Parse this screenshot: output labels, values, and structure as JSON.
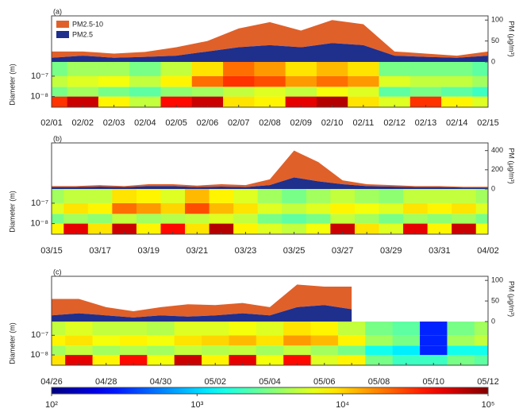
{
  "chart_data": [
    {
      "type": "spectrum",
      "label": "(a)",
      "ylabel": "Diameter (m)",
      "y2label": "PM (μg/m³)",
      "categories": [
        "02/01",
        "02/02",
        "02/03",
        "02/04",
        "02/05",
        "02/06",
        "02/07",
        "02/08",
        "02/09",
        "02/10",
        "02/11",
        "02/12",
        "02/13",
        "02/14",
        "02/15"
      ],
      "series": [
        {
          "name": "PM2.5",
          "color": "#1f2f8c",
          "values": [
            10,
            15,
            10,
            12,
            15,
            25,
            35,
            40,
            35,
            45,
            40,
            15,
            12,
            10,
            15
          ]
        },
        {
          "name": "PM2.5-10",
          "color": "#e0602a",
          "values": [
            15,
            10,
            10,
            12,
            20,
            25,
            45,
            55,
            40,
            55,
            50,
            10,
            8,
            5,
            10
          ]
        }
      ],
      "legend": "upper left",
      "y2lim": [
        0,
        110
      ],
      "y2ticks": [
        0,
        50,
        100
      ],
      "ylim": [
        3e-09,
        5e-07
      ],
      "log": true,
      "yticks": [
        {
          "value": 1e-07,
          "label": "10⁻⁷"
        },
        {
          "value": 1e-08,
          "label": "10⁻⁸"
        }
      ],
      "diameter_bins": [
        3e-09,
        1e-08,
        3e-08,
        1e-07,
        5e-07
      ],
      "heatmap": [
        [
          30000,
          60000,
          8000,
          5000,
          40000,
          60000,
          9000,
          8000,
          50000,
          70000,
          9000,
          6000,
          30000,
          8000,
          6000
        ],
        [
          3000,
          4000,
          3000,
          2500,
          3500,
          4000,
          5000,
          6000,
          5000,
          7000,
          6000,
          2500,
          3000,
          2500,
          2000
        ],
        [
          5000,
          6000,
          7000,
          5000,
          8000,
          20000,
          30000,
          25000,
          15000,
          20000,
          15000,
          6000,
          5000,
          5000,
          4000
        ],
        [
          3000,
          4000,
          4000,
          3000,
          5000,
          9000,
          20000,
          15000,
          9000,
          12000,
          9000,
          3000,
          3000,
          3000,
          2500
        ]
      ]
    },
    {
      "type": "spectrum",
      "label": "(b)",
      "ylabel": "Diameter (m)",
      "y2label": "PM (μg/m³)",
      "categories": [
        "03/15",
        null,
        "03/17",
        null,
        "03/19",
        null,
        "03/21",
        null,
        "03/23",
        null,
        "03/25",
        null,
        "03/27",
        null,
        "03/29",
        null,
        "03/31",
        null,
        "04/02"
      ],
      "series": [
        {
          "name": "PM2.5",
          "color": "#1f2f8c",
          "values": [
            20,
            20,
            25,
            20,
            30,
            30,
            20,
            25,
            20,
            40,
            120,
            80,
            50,
            30,
            25,
            20,
            20,
            15,
            15
          ]
        },
        {
          "name": "PM2.5-10",
          "color": "#e0602a",
          "values": [
            10,
            10,
            15,
            10,
            20,
            20,
            15,
            25,
            20,
            60,
            280,
            200,
            40,
            20,
            15,
            10,
            10,
            8,
            8
          ]
        }
      ],
      "y2lim": [
        0,
        480
      ],
      "y2ticks": [
        0,
        200,
        400
      ],
      "ylim": [
        3e-09,
        5e-07
      ],
      "log": true,
      "yticks": [
        {
          "value": 1e-07,
          "label": "10⁻⁷"
        },
        {
          "value": 1e-08,
          "label": "10⁻⁸"
        }
      ],
      "diameter_bins": [
        3e-09,
        1e-08,
        3e-08,
        1e-07,
        5e-07
      ],
      "heatmap": [
        [
          8000,
          50000,
          9000,
          60000,
          8000,
          40000,
          9000,
          70000,
          8000,
          6000,
          5000,
          7000,
          60000,
          9000,
          6000,
          50000,
          8000,
          60000,
          7000
        ],
        [
          3000,
          4000,
          3500,
          5000,
          4000,
          4500,
          5000,
          6000,
          5000,
          3000,
          2500,
          3000,
          5000,
          4000,
          3000,
          4000,
          3500,
          4000,
          3000
        ],
        [
          6000,
          9000,
          8000,
          20000,
          15000,
          10000,
          25000,
          12000,
          9000,
          6000,
          5000,
          6000,
          8000,
          7000,
          6000,
          9000,
          8000,
          9000,
          6000
        ],
        [
          4000,
          5000,
          5000,
          9000,
          8000,
          6000,
          12000,
          8000,
          6000,
          4000,
          3000,
          4000,
          5000,
          4000,
          3500,
          5000,
          5000,
          5000,
          4000
        ]
      ]
    },
    {
      "type": "spectrum",
      "label": "(c)",
      "ylabel": "Diameter (m)",
      "y2label": "PM (μg/m³)",
      "categories": [
        "04/26",
        null,
        "04/28",
        null,
        "04/30",
        null,
        "05/02",
        null,
        "05/04",
        null,
        "05/06",
        null,
        "05/08",
        null,
        "05/10",
        null,
        "05/12"
      ],
      "series": [
        {
          "name": "PM2.5",
          "color": "#1f2f8c",
          "values": [
            15,
            20,
            15,
            10,
            15,
            12,
            15,
            20,
            15,
            35,
            40,
            30,
            null,
            null,
            null,
            null,
            10
          ]
        },
        {
          "name": "PM2.5-10",
          "color": "#e0602a",
          "values": [
            40,
            35,
            20,
            15,
            20,
            30,
            25,
            25,
            20,
            55,
            45,
            55,
            null,
            null,
            null,
            null,
            10
          ]
        }
      ],
      "y2lim": [
        0,
        110
      ],
      "y2ticks": [
        0,
        50,
        100
      ],
      "ylim": [
        3e-09,
        5e-07
      ],
      "log": true,
      "yticks": [
        {
          "value": 1e-07,
          "label": "10⁻⁷"
        },
        {
          "value": 1e-08,
          "label": "10⁻⁸"
        }
      ],
      "diameter_bins": [
        3e-09,
        1e-08,
        3e-08,
        1e-07,
        5e-07
      ],
      "heatmap": [
        [
          9000,
          50000,
          8000,
          40000,
          7000,
          60000,
          8000,
          50000,
          7000,
          40000,
          6000,
          8000,
          3000,
          2000,
          2000,
          3000,
          2500
        ],
        [
          4000,
          5000,
          4000,
          4500,
          4000,
          5000,
          4500,
          5000,
          4000,
          5000,
          4000,
          3000,
          1500,
          1200,
          300,
          1500,
          1500
        ],
        [
          8000,
          9000,
          7000,
          8000,
          7000,
          9000,
          10000,
          12000,
          9000,
          15000,
          12000,
          8000,
          4000,
          3000,
          300,
          4000,
          5000
        ],
        [
          5000,
          6000,
          5000,
          5000,
          4500,
          6000,
          6000,
          7000,
          6000,
          9000,
          8000,
          5000,
          3000,
          2500,
          300,
          3000,
          4000
        ]
      ]
    },
    {
      "type": "colorbar",
      "log": true,
      "clim": [
        100,
        100000
      ],
      "ticks": [
        {
          "value": 100,
          "label": "10²"
        },
        {
          "value": 1000,
          "label": "10³"
        },
        {
          "value": 10000,
          "label": "10⁴"
        },
        {
          "value": 100000,
          "label": "10⁵"
        }
      ]
    }
  ]
}
